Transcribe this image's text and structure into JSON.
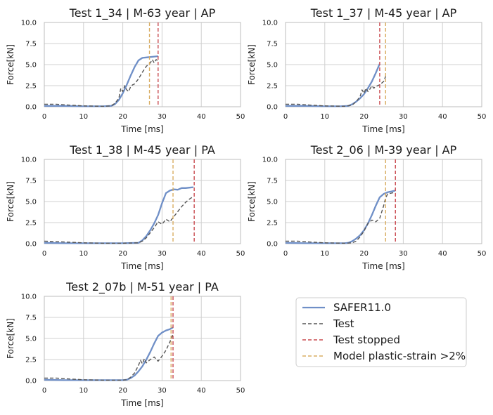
{
  "legend": {
    "entries": [
      {
        "label": "SAFER11.0",
        "color": "#6f8fc7",
        "style": "solid"
      },
      {
        "label": "Test",
        "color": "#555555",
        "style": "dashed"
      },
      {
        "label": "Test stopped",
        "color": "#c94a4f",
        "style": "dashed"
      },
      {
        "label": "Model plastic-strain >2%",
        "color": "#d9ad63",
        "style": "dashed"
      }
    ]
  },
  "colors": {
    "model": "#6f8fc7",
    "test": "#555555",
    "stop": "#c94a4f",
    "plastic": "#d9ad63",
    "grid": "#d0d0d0",
    "axes": "#bdbdbd"
  },
  "chart_data": [
    {
      "type": "line",
      "title": "Test 1_34 | M-63 year | AP",
      "xlabel": "Time [ms]",
      "ylabel": "Force[kN]",
      "xlim": [
        0,
        50
      ],
      "ylim": [
        0,
        10
      ],
      "xticks": [
        "0",
        "10",
        "20",
        "30",
        "40",
        "50"
      ],
      "yticks": [
        "0.0",
        "2.5",
        "5.0",
        "7.5",
        "10.0"
      ],
      "grid": true,
      "series": [
        {
          "name": "SAFER11.0",
          "x": [
            0,
            5,
            10,
            15,
            17,
            18,
            19,
            20,
            21,
            22,
            23,
            24,
            25,
            26,
            27,
            28,
            29
          ],
          "y": [
            0.1,
            0.1,
            0.05,
            0.05,
            0.1,
            0.3,
            0.8,
            1.6,
            2.6,
            3.7,
            4.7,
            5.5,
            5.8,
            5.85,
            5.9,
            5.95,
            6.0
          ]
        },
        {
          "name": "Test",
          "x": [
            0,
            3,
            6,
            10,
            15,
            17,
            18,
            19,
            19.5,
            20,
            20.5,
            21,
            21.5,
            22,
            22.5,
            23,
            24,
            25,
            26,
            27,
            27.5,
            28,
            28.5,
            29
          ],
          "y": [
            0.3,
            0.3,
            0.2,
            0.1,
            0.05,
            0.1,
            0.4,
            1.0,
            2.2,
            1.8,
            2.5,
            2.0,
            1.8,
            2.4,
            2.6,
            2.7,
            3.3,
            4.1,
            4.8,
            5.2,
            5.6,
            5.2,
            5.6,
            5.4
          ]
        }
      ],
      "vlines": {
        "test_stopped": 29,
        "plastic_strain": 26.8
      }
    },
    {
      "type": "line",
      "title": "Test 1_37 | M-45 year | AP",
      "xlabel": "Time [ms]",
      "ylabel": "Force[kN]",
      "xlim": [
        0,
        50
      ],
      "ylim": [
        0,
        10
      ],
      "xticks": [
        "0",
        "10",
        "20",
        "30",
        "40",
        "50"
      ],
      "yticks": [
        "0.0",
        "2.5",
        "5.0",
        "7.5",
        "10.0"
      ],
      "grid": true,
      "series": [
        {
          "name": "SAFER11.0",
          "x": [
            0,
            5,
            10,
            14,
            16,
            17,
            18,
            19,
            20,
            21,
            22,
            23,
            24
          ],
          "y": [
            0.1,
            0.1,
            0.05,
            0.05,
            0.1,
            0.3,
            0.6,
            1.0,
            1.5,
            2.2,
            3.0,
            4.0,
            5.1
          ]
        },
        {
          "name": "Test",
          "x": [
            0,
            3,
            6,
            10,
            15,
            17,
            18,
            19,
            19.5,
            20,
            20.5,
            21,
            21.5,
            22,
            22.5,
            23,
            24,
            25,
            25.5
          ],
          "y": [
            0.3,
            0.3,
            0.2,
            0.1,
            0.05,
            0.2,
            0.6,
            1.2,
            2.0,
            1.6,
            2.2,
            1.8,
            2.1,
            2.5,
            2.2,
            2.4,
            2.6,
            3.0,
            3.6
          ]
        }
      ],
      "vlines": {
        "test_stopped": 24,
        "plastic_strain": 25.5
      }
    },
    {
      "type": "line",
      "title": "Test 1_38 | M-45 year | PA",
      "xlabel": "Time [ms]",
      "ylabel": "Force[kN]",
      "xlim": [
        0,
        50
      ],
      "ylim": [
        0,
        10
      ],
      "xticks": [
        "0",
        "10",
        "20",
        "30",
        "40",
        "50"
      ],
      "yticks": [
        "0.0",
        "2.5",
        "5.0",
        "7.5",
        "10.0"
      ],
      "grid": true,
      "series": [
        {
          "name": "SAFER11.0",
          "x": [
            0,
            5,
            10,
            15,
            20,
            24,
            25,
            26,
            27,
            28,
            29,
            30,
            31,
            32,
            33,
            34,
            35,
            36,
            37,
            38
          ],
          "y": [
            0.1,
            0.05,
            0.05,
            0.05,
            0.05,
            0.1,
            0.4,
            0.9,
            1.6,
            2.4,
            3.4,
            4.8,
            6.0,
            6.3,
            6.45,
            6.4,
            6.6,
            6.6,
            6.65,
            6.7
          ]
        },
        {
          "name": "Test",
          "x": [
            0,
            5,
            10,
            15,
            20,
            24,
            25,
            26,
            27,
            28,
            29,
            30,
            31,
            32,
            33,
            34,
            35,
            36,
            37,
            38
          ],
          "y": [
            0.3,
            0.2,
            0.1,
            0.05,
            0.05,
            0.1,
            0.3,
            0.7,
            1.3,
            1.9,
            2.6,
            2.3,
            2.9,
            2.6,
            3.2,
            3.8,
            4.4,
            4.9,
            5.3,
            5.6
          ]
        }
      ],
      "vlines": {
        "test_stopped": 38.2,
        "plastic_strain": 32.8
      }
    },
    {
      "type": "line",
      "title": "Test 2_06 | M-39 year | AP",
      "xlabel": "Time [ms]",
      "ylabel": "Force[kN]",
      "xlim": [
        0,
        50
      ],
      "ylim": [
        0,
        10
      ],
      "xticks": [
        "0",
        "10",
        "20",
        "30",
        "40",
        "50"
      ],
      "yticks": [
        "0.0",
        "2.5",
        "5.0",
        "7.5",
        "10.0"
      ],
      "grid": true,
      "series": [
        {
          "name": "SAFER11.0",
          "x": [
            0,
            5,
            10,
            15,
            16,
            17,
            18,
            19,
            20,
            21,
            22,
            23,
            24,
            25,
            26,
            27,
            28
          ],
          "y": [
            0.1,
            0.05,
            0.05,
            0.05,
            0.1,
            0.3,
            0.6,
            1.0,
            1.6,
            2.4,
            3.4,
            4.5,
            5.5,
            5.9,
            6.1,
            6.2,
            6.3
          ]
        },
        {
          "name": "Test",
          "x": [
            0,
            3,
            6,
            10,
            15,
            17,
            18,
            19,
            20,
            21,
            22,
            23,
            24,
            25,
            25.5,
            26,
            27,
            28
          ],
          "y": [
            0.3,
            0.3,
            0.2,
            0.1,
            0.05,
            0.1,
            0.3,
            0.8,
            1.5,
            2.4,
            2.8,
            2.6,
            3.0,
            4.5,
            5.4,
            5.9,
            6.0,
            6.1
          ]
        }
      ],
      "vlines": {
        "test_stopped": 28,
        "plastic_strain": 25.5
      }
    },
    {
      "type": "line",
      "title": "Test 2_07b | M-51 year | PA",
      "xlabel": "Time [ms]",
      "ylabel": "Force[kN]",
      "xlim": [
        0,
        50
      ],
      "ylim": [
        0,
        10
      ],
      "xticks": [
        "0",
        "10",
        "20",
        "30",
        "40",
        "50"
      ],
      "yticks": [
        "0.0",
        "2.5",
        "5.0",
        "7.5",
        "10.0"
      ],
      "grid": true,
      "series": [
        {
          "name": "SAFER11.0",
          "x": [
            0,
            5,
            10,
            15,
            20,
            21,
            22,
            23,
            24,
            25,
            26,
            27,
            28,
            29,
            30,
            31,
            32,
            32.8
          ],
          "y": [
            0.1,
            0.05,
            0.05,
            0.05,
            0.05,
            0.1,
            0.3,
            0.6,
            1.1,
            1.7,
            2.5,
            3.4,
            4.4,
            5.3,
            5.7,
            5.95,
            6.1,
            6.3
          ]
        },
        {
          "name": "Test",
          "x": [
            0,
            3,
            6,
            10,
            15,
            20,
            21,
            22,
            23,
            24,
            24.5,
            25,
            25.5,
            26,
            27,
            28,
            29,
            30,
            31,
            32,
            32.8
          ],
          "y": [
            0.3,
            0.3,
            0.2,
            0.1,
            0.05,
            0.05,
            0.1,
            0.4,
            0.9,
            1.8,
            2.4,
            2.0,
            2.6,
            2.1,
            2.5,
            2.8,
            2.3,
            2.9,
            3.6,
            4.6,
            5.5
          ]
        }
      ],
      "vlines": {
        "test_stopped": 32.8,
        "plastic_strain": 32.3
      }
    }
  ]
}
